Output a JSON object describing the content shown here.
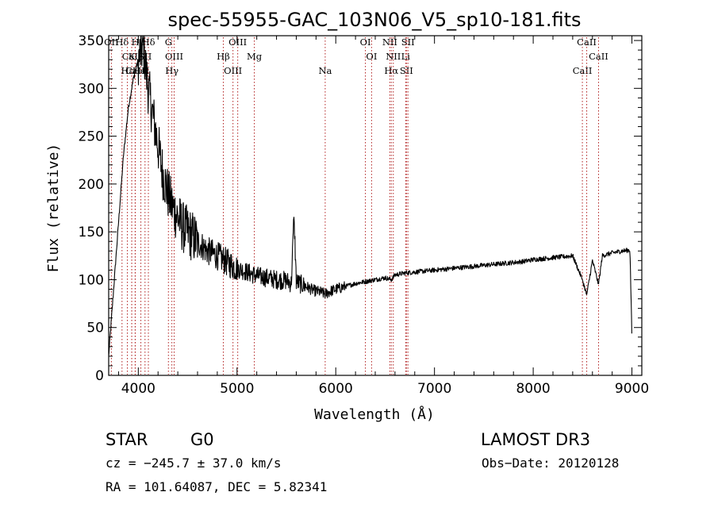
{
  "chart_data": {
    "type": "line",
    "title": "spec-55955-GAC_103N06_V5_sp10-181.fits",
    "xlabel": "Wavelength (Å)",
    "ylabel": "Flux (relative)",
    "xlim": [
      3700,
      9100
    ],
    "ylim": [
      0,
      355
    ],
    "xticks": [
      4000,
      5000,
      6000,
      7000,
      8000,
      9000
    ],
    "yticks": [
      0,
      50,
      100,
      150,
      200,
      250,
      300,
      350
    ],
    "grid": false,
    "series": [
      {
        "name": "flux",
        "x": [
          3700,
          3750,
          3800,
          3850,
          3900,
          3950,
          4000,
          4050,
          4100,
          4150,
          4200,
          4250,
          4300,
          4350,
          4400,
          4450,
          4500,
          4600,
          4700,
          4800,
          4900,
          5000,
          5100,
          5200,
          5300,
          5400,
          5500,
          5550,
          5577,
          5600,
          5650,
          5700,
          5750,
          5800,
          5850,
          5890,
          5950,
          6000,
          6100,
          6200,
          6300,
          6400,
          6500,
          6563,
          6600,
          6700,
          6800,
          6900,
          7000,
          7100,
          7200,
          7300,
          7400,
          7500,
          7600,
          7700,
          7800,
          7900,
          8000,
          8100,
          8200,
          8300,
          8400,
          8498,
          8542,
          8600,
          8662,
          8700,
          8800,
          8900,
          8980,
          9000
        ],
        "y": [
          20,
          90,
          160,
          230,
          280,
          310,
          330,
          345,
          300,
          270,
          240,
          210,
          190,
          175,
          165,
          155,
          150,
          140,
          130,
          125,
          118,
          112,
          108,
          104,
          102,
          100,
          99,
          96,
          168,
          98,
          95,
          93,
          90,
          88,
          87,
          85,
          88,
          90,
          93,
          96,
          98,
          100,
          102,
          100,
          105,
          107,
          108,
          109,
          110,
          111,
          112,
          113,
          114,
          115,
          116,
          117,
          118,
          119,
          121,
          122,
          123,
          124,
          125,
          100,
          84,
          120,
          95,
          125,
          128,
          130,
          131,
          40
        ]
      }
    ],
    "lines": [
      {
        "label": "Hδ",
        "wave": 3835
      },
      {
        "label": "CaII",
        "wave": 3934
      },
      {
        "label": "CaII",
        "wave": 3968
      },
      {
        "label": "H",
        "wave": 3970
      },
      {
        "label": "K",
        "wave": 3933
      },
      {
        "label": "HeI",
        "wave": 4026
      },
      {
        "label": "Hδ",
        "wave": 4102
      },
      {
        "label": "SII",
        "wave": 4068
      },
      {
        "label": "Hε",
        "wave": 3889
      },
      {
        "label": "OII",
        "wave": 3727
      },
      {
        "label": "OIII",
        "wave": 4363
      },
      {
        "label": "Hγ",
        "wave": 4340
      },
      {
        "label": "G",
        "wave": 4305
      },
      {
        "label": "Hβ",
        "wave": 4861
      },
      {
        "label": "OIII",
        "wave": 4959
      },
      {
        "label": "OIII",
        "wave": 5007
      },
      {
        "label": "Mg",
        "wave": 5175
      },
      {
        "label": "Na",
        "wave": 5893
      },
      {
        "label": "OI",
        "wave": 6300
      },
      {
        "label": "OI",
        "wave": 6363
      },
      {
        "label": "Hα",
        "wave": 6563
      },
      {
        "label": "NII",
        "wave": 6548
      },
      {
        "label": "NII",
        "wave": 6583
      },
      {
        "label": "SII",
        "wave": 6716
      },
      {
        "label": "SII",
        "wave": 6731
      },
      {
        "label": "Li",
        "wave": 6708
      },
      {
        "label": "CaII",
        "wave": 8498
      },
      {
        "label": "CaII",
        "wave": 8542
      },
      {
        "label": "CaII",
        "wave": 8662
      }
    ]
  },
  "info": {
    "class": "STAR",
    "subclass": "G0",
    "survey": "LAMOST DR3",
    "cz": "cz = −245.7 ± 37.0 km/s",
    "obs_date": "Obs−Date: 20120128",
    "coords": "RA = 101.64087, DEC =   5.82341"
  },
  "colors": {
    "spectrum": "#000000",
    "line_marker": "#b22222",
    "axes": "#000000"
  }
}
